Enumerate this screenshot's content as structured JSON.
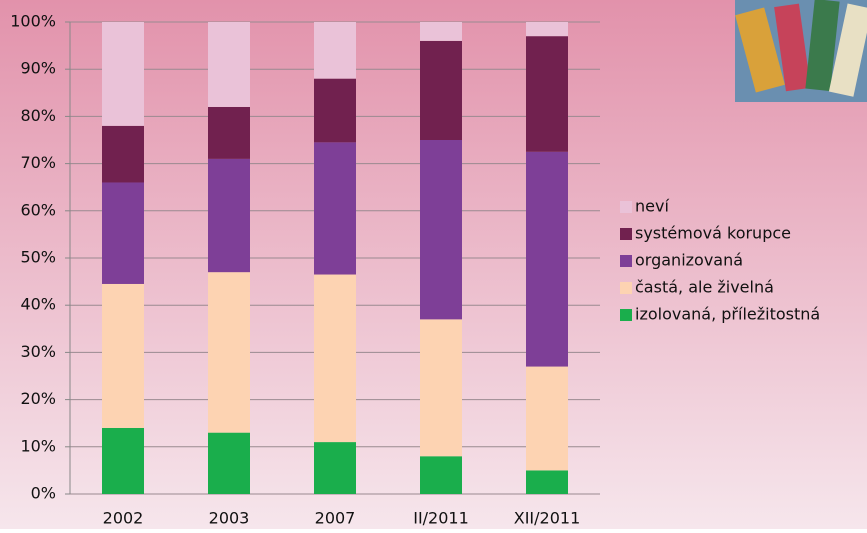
{
  "chart_data": {
    "type": "stacked_bar",
    "categories": [
      "2002",
      "2003",
      "2007",
      "II/2011",
      "XII/2011"
    ],
    "series": [
      {
        "name": "izolovaná, příležitostná",
        "color": "#1aae4c",
        "values": [
          14,
          13,
          11,
          8,
          5
        ]
      },
      {
        "name": "častá, ale živelná",
        "color": "#fdd3b2",
        "values": [
          30.5,
          34,
          35.5,
          29,
          22
        ]
      },
      {
        "name": "organizovaná",
        "color": "#7e3f97",
        "values": [
          21.5,
          24,
          28,
          38,
          45.5
        ]
      },
      {
        "name": "systémová korupce",
        "color": "#71214f",
        "values": [
          12,
          11,
          13.5,
          21,
          24.5
        ]
      },
      {
        "name": "neví",
        "color": "#eac2d8",
        "values": [
          22,
          18,
          12,
          4,
          3
        ]
      }
    ],
    "ylim": [
      0,
      100
    ],
    "yticks": [
      {
        "value": 0,
        "label": "0%"
      },
      {
        "value": 10,
        "label": "10%"
      },
      {
        "value": 20,
        "label": "20%"
      },
      {
        "value": 30,
        "label": "30%"
      },
      {
        "value": 40,
        "label": "40%"
      },
      {
        "value": 50,
        "label": "50%"
      },
      {
        "value": 60,
        "label": "60%"
      },
      {
        "value": 70,
        "label": "70%"
      },
      {
        "value": 80,
        "label": "80%"
      },
      {
        "value": 90,
        "label": "90%"
      },
      {
        "value": 100,
        "label": "100%"
      }
    ],
    "grid": true
  }
}
